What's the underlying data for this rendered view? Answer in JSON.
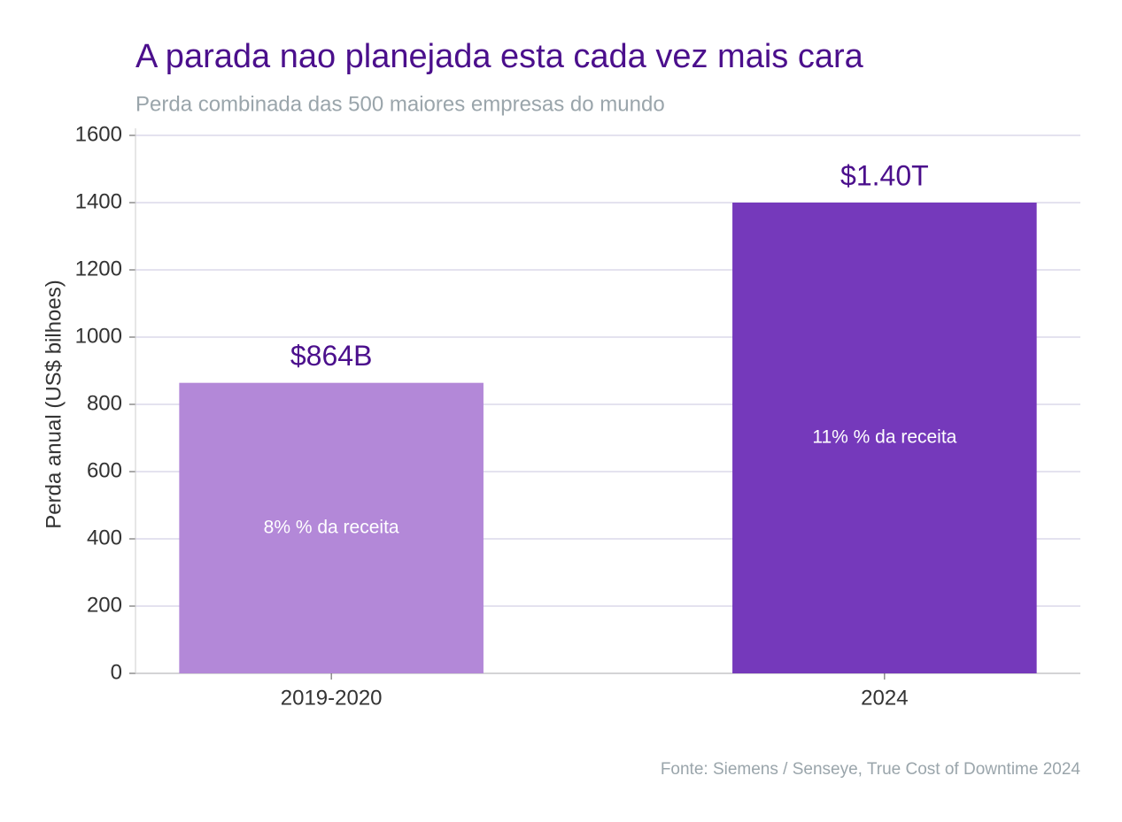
{
  "chart_data": {
    "type": "bar",
    "title": "A parada nao planejada esta cada vez mais cara",
    "subtitle": "Perda combinada das 500 maiores empresas do mundo",
    "ylabel": "Perda anual (US$ bilhoes)",
    "source": "Fonte: Siemens / Senseye, True Cost of Downtime 2024",
    "categories": [
      "2019-2020",
      "2024"
    ],
    "values": [
      864,
      1400
    ],
    "value_labels": [
      "$864B",
      "$1.40T"
    ],
    "inner_labels": [
      "8% % da receita",
      "11% % da receita"
    ],
    "colors": [
      "#b388d8",
      "#7539bb"
    ],
    "ylim": [
      0,
      1600
    ],
    "yticks": [
      0,
      200,
      400,
      600,
      800,
      1000,
      1200,
      1400,
      1600
    ],
    "grid": true
  }
}
